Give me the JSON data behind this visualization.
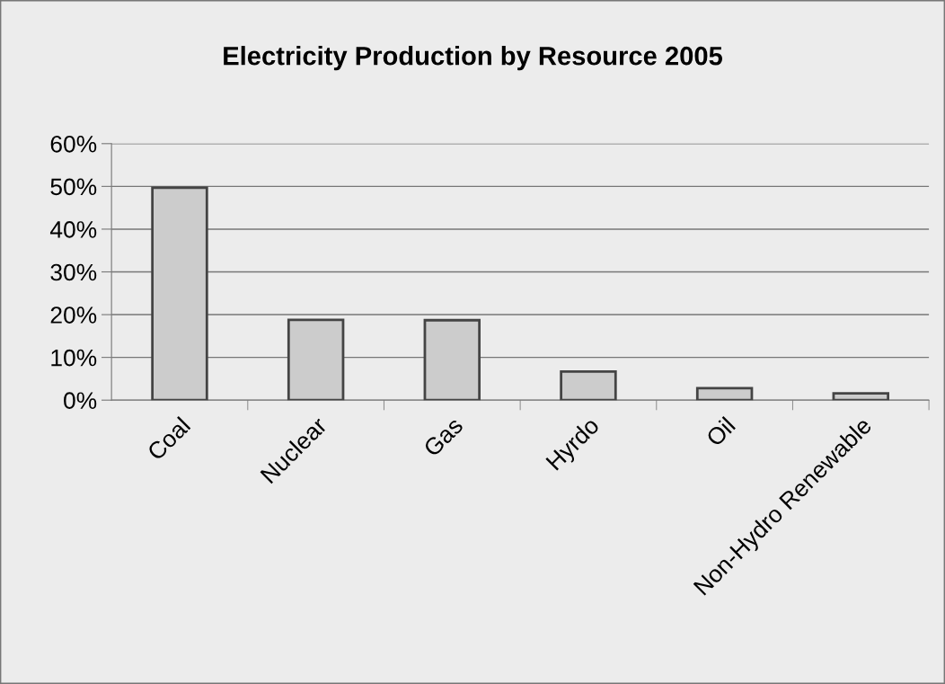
{
  "chart_data": {
    "type": "bar",
    "title": "Electricity Production by Resource 2005",
    "categories": [
      "Coal",
      "Nuclear",
      "Gas",
      "Hyrdo",
      "Oil",
      "Non-Hydro Renewable"
    ],
    "values": [
      49.7,
      18.8,
      18.7,
      6.7,
      2.8,
      1.6
    ],
    "color": "#cccccc",
    "ylim": [
      0,
      60
    ],
    "yticks": [
      {
        "value": 0,
        "label": "0%"
      },
      {
        "value": 10,
        "label": "10%"
      },
      {
        "value": 20,
        "label": "20%"
      },
      {
        "value": 30,
        "label": "30%"
      },
      {
        "value": 40,
        "label": "40%"
      },
      {
        "value": 50,
        "label": "50%"
      },
      {
        "value": 60,
        "label": "60%"
      }
    ],
    "grid": "y",
    "legend": false
  }
}
